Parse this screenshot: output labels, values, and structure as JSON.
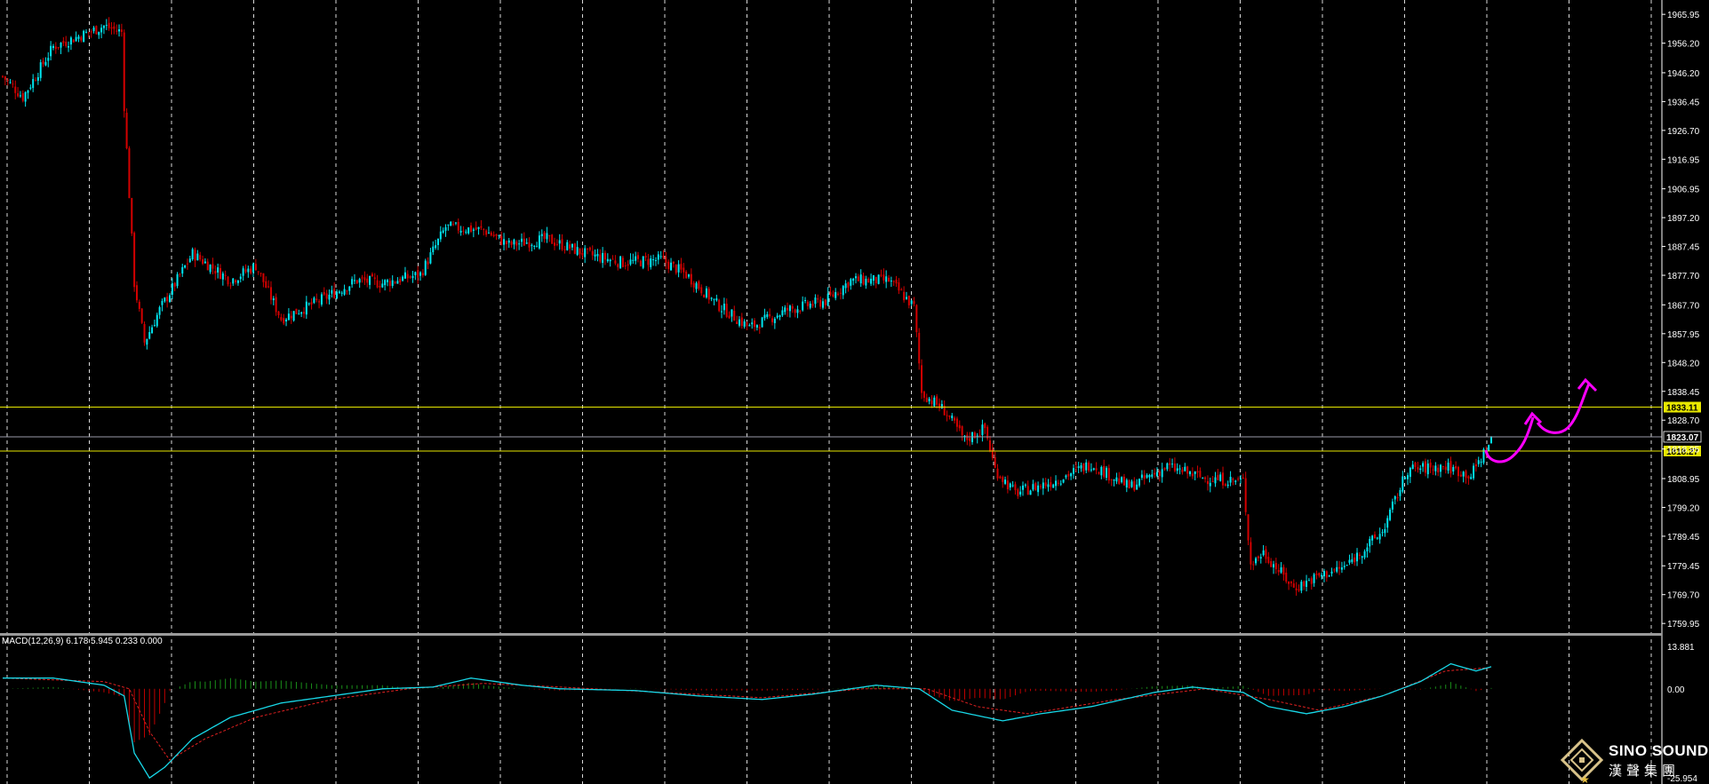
{
  "colors": {
    "background": "#000000",
    "bull": "#00e5f0",
    "bear": "#d40000",
    "grid": "#ffffff",
    "level": "#e8e800",
    "current_price_line": "#9a9aa8",
    "macd_line": "#18d8e8",
    "signal_line": "#e02020",
    "hist_pos": "#1a8f1a",
    "hist_neg": "#c00000",
    "annotation": "#ff00ff",
    "separator": "#9a9a9a"
  },
  "chart_data": [
    {
      "type": "candlestick",
      "title": "",
      "ylim": [
        1757,
        1969
      ],
      "y_ticks": [
        "1965.95",
        "1956.20",
        "1946.20",
        "1936.45",
        "1926.70",
        "1916.95",
        "1906.95",
        "1897.20",
        "1887.45",
        "1877.70",
        "1867.70",
        "1857.95",
        "1848.20",
        "1838.45",
        "1828.70",
        "1818.95",
        "1808.95",
        "1799.20",
        "1789.45",
        "1779.45",
        "1769.70",
        "1759.95"
      ],
      "levels": [
        {
          "name": "upper-resistance",
          "value": 1833.11,
          "label": "1833.11",
          "style": "highlight"
        },
        {
          "name": "current-price",
          "value": 1823.07,
          "label": "1823.07",
          "style": "current"
        },
        {
          "name": "lower-support",
          "value": 1818.27,
          "label": "1818.27",
          "style": "highlight"
        }
      ],
      "vertical_grid_count": 22,
      "series_anchors": [
        {
          "i": 0,
          "v": 1945
        },
        {
          "i": 8,
          "v": 1938
        },
        {
          "i": 20,
          "v": 1955
        },
        {
          "i": 40,
          "v": 1962
        },
        {
          "i": 47,
          "v": 1960
        },
        {
          "i": 48,
          "v": 1935
        },
        {
          "i": 52,
          "v": 1875
        },
        {
          "i": 56,
          "v": 1855
        },
        {
          "i": 62,
          "v": 1866
        },
        {
          "i": 75,
          "v": 1885
        },
        {
          "i": 90,
          "v": 1876
        },
        {
          "i": 100,
          "v": 1881
        },
        {
          "i": 110,
          "v": 1863
        },
        {
          "i": 125,
          "v": 1869
        },
        {
          "i": 140,
          "v": 1876
        },
        {
          "i": 150,
          "v": 1875
        },
        {
          "i": 165,
          "v": 1878
        },
        {
          "i": 175,
          "v": 1894
        },
        {
          "i": 190,
          "v": 1893
        },
        {
          "i": 200,
          "v": 1888
        },
        {
          "i": 215,
          "v": 1890
        },
        {
          "i": 230,
          "v": 1885
        },
        {
          "i": 245,
          "v": 1882
        },
        {
          "i": 260,
          "v": 1883
        },
        {
          "i": 270,
          "v": 1878
        },
        {
          "i": 282,
          "v": 1868
        },
        {
          "i": 295,
          "v": 1860
        },
        {
          "i": 310,
          "v": 1866
        },
        {
          "i": 325,
          "v": 1869
        },
        {
          "i": 335,
          "v": 1876
        },
        {
          "i": 350,
          "v": 1876
        },
        {
          "i": 360,
          "v": 1867
        },
        {
          "i": 363,
          "v": 1838
        },
        {
          "i": 372,
          "v": 1832
        },
        {
          "i": 380,
          "v": 1822
        },
        {
          "i": 388,
          "v": 1826
        },
        {
          "i": 392,
          "v": 1812
        },
        {
          "i": 400,
          "v": 1804
        },
        {
          "i": 415,
          "v": 1808
        },
        {
          "i": 430,
          "v": 1814
        },
        {
          "i": 445,
          "v": 1806
        },
        {
          "i": 460,
          "v": 1813
        },
        {
          "i": 475,
          "v": 1809
        },
        {
          "i": 490,
          "v": 1808
        },
        {
          "i": 493,
          "v": 1780
        },
        {
          "i": 498,
          "v": 1784
        },
        {
          "i": 510,
          "v": 1772
        },
        {
          "i": 520,
          "v": 1776
        },
        {
          "i": 530,
          "v": 1779
        },
        {
          "i": 545,
          "v": 1791
        },
        {
          "i": 555,
          "v": 1812
        },
        {
          "i": 570,
          "v": 1813
        },
        {
          "i": 580,
          "v": 1810
        },
        {
          "i": 588,
          "v": 1822
        }
      ],
      "candle_count": 589
    },
    {
      "type": "line",
      "title": "",
      "indicator_label": "MACD(12,26,9) 6.178 5.945 0.233 0.000",
      "ylim": [
        -25.95,
        13.881
      ],
      "y_ticks": [
        "13.881",
        "0.00",
        "-25.954"
      ],
      "series": [
        {
          "name": "macd",
          "anchors": [
            {
              "i": 0,
              "v": 3
            },
            {
              "i": 20,
              "v": 3
            },
            {
              "i": 40,
              "v": 1
            },
            {
              "i": 48,
              "v": -2
            },
            {
              "i": 52,
              "v": -18
            },
            {
              "i": 58,
              "v": -25
            },
            {
              "i": 64,
              "v": -22
            },
            {
              "i": 75,
              "v": -14
            },
            {
              "i": 90,
              "v": -8
            },
            {
              "i": 110,
              "v": -4
            },
            {
              "i": 130,
              "v": -2
            },
            {
              "i": 150,
              "v": 0
            },
            {
              "i": 170,
              "v": 0.5
            },
            {
              "i": 185,
              "v": 3
            },
            {
              "i": 205,
              "v": 1
            },
            {
              "i": 220,
              "v": 0
            },
            {
              "i": 250,
              "v": -0.5
            },
            {
              "i": 275,
              "v": -2
            },
            {
              "i": 300,
              "v": -3
            },
            {
              "i": 320,
              "v": -1.5
            },
            {
              "i": 345,
              "v": 1
            },
            {
              "i": 362,
              "v": 0
            },
            {
              "i": 375,
              "v": -6
            },
            {
              "i": 395,
              "v": -9
            },
            {
              "i": 410,
              "v": -7
            },
            {
              "i": 430,
              "v": -5
            },
            {
              "i": 455,
              "v": -1
            },
            {
              "i": 470,
              "v": 0.5
            },
            {
              "i": 490,
              "v": -1
            },
            {
              "i": 500,
              "v": -5
            },
            {
              "i": 515,
              "v": -7
            },
            {
              "i": 530,
              "v": -5
            },
            {
              "i": 545,
              "v": -2
            },
            {
              "i": 560,
              "v": 2
            },
            {
              "i": 572,
              "v": 7
            },
            {
              "i": 582,
              "v": 5
            },
            {
              "i": 588,
              "v": 6.178
            }
          ]
        },
        {
          "name": "signal",
          "anchors": [
            {
              "i": 0,
              "v": 3
            },
            {
              "i": 40,
              "v": 2
            },
            {
              "i": 50,
              "v": 0
            },
            {
              "i": 58,
              "v": -12
            },
            {
              "i": 66,
              "v": -20
            },
            {
              "i": 80,
              "v": -14
            },
            {
              "i": 100,
              "v": -8
            },
            {
              "i": 130,
              "v": -3
            },
            {
              "i": 160,
              "v": 0
            },
            {
              "i": 190,
              "v": 1.5
            },
            {
              "i": 220,
              "v": 0.5
            },
            {
              "i": 260,
              "v": -1
            },
            {
              "i": 300,
              "v": -2.5
            },
            {
              "i": 340,
              "v": 0
            },
            {
              "i": 365,
              "v": 0
            },
            {
              "i": 385,
              "v": -5
            },
            {
              "i": 405,
              "v": -7
            },
            {
              "i": 440,
              "v": -3
            },
            {
              "i": 475,
              "v": 0
            },
            {
              "i": 500,
              "v": -3
            },
            {
              "i": 520,
              "v": -6
            },
            {
              "i": 545,
              "v": -2
            },
            {
              "i": 570,
              "v": 5
            },
            {
              "i": 588,
              "v": 5.945
            }
          ]
        }
      ]
    }
  ],
  "watermark": {
    "brand_en": "SINO SOUND",
    "brand_zh": "漢聲集團"
  }
}
